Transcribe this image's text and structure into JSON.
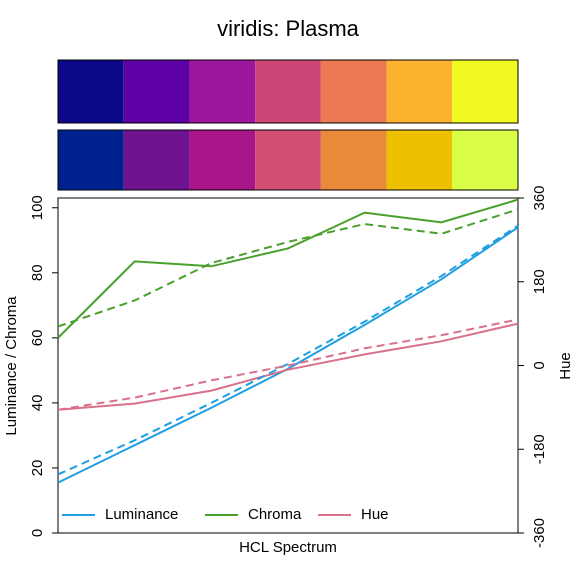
{
  "chart_data": {
    "type": "line",
    "title": "viridis: Plasma",
    "xlabel": "HCL Spectrum",
    "ylabel": "Luminance / Chroma",
    "y2label": "Hue",
    "swatches": [
      [
        "#0D0887",
        "#5D01A6",
        "#9C179E",
        "#CC4678",
        "#ED7953",
        "#FDB32F",
        "#F0F921"
      ],
      [
        "#00208F",
        "#6F1390",
        "#A8168A",
        "#D24F73",
        "#E88A3A",
        "#EEC100",
        "#D9FE45"
      ]
    ],
    "categories": [
      null,
      null,
      null,
      null,
      null,
      null,
      null
    ],
    "ylim": [
      0,
      103
    ],
    "yticks": [
      0,
      20,
      40,
      60,
      80,
      100
    ],
    "y2lim": [
      -360,
      360
    ],
    "y2ticks": [
      -360,
      -180,
      0,
      180,
      360
    ],
    "series": [
      {
        "name": "Luminance",
        "color": "#1F9EE0",
        "values": [
          15.5,
          27,
          38.5,
          50.5,
          64,
          78,
          94
        ]
      },
      {
        "name": "Chroma",
        "color": "#4AA02C",
        "values": [
          60,
          83.5,
          82,
          87.5,
          98.5,
          95.5,
          102.5
        ]
      },
      {
        "name": "Hue",
        "color": "#D9718A",
        "axis": "y2",
        "values": [
          -95,
          -82,
          -54,
          -9,
          24,
          52,
          90
        ]
      },
      {
        "color": "#1F9EE0",
        "dashed": true,
        "values": [
          18,
          28.5,
          40,
          52,
          65,
          79,
          94.5
        ]
      },
      {
        "color": "#4AA02C",
        "dashed": true,
        "values": [
          63.5,
          71.5,
          83,
          89.5,
          95,
          92,
          99.5
        ]
      },
      {
        "color": "#D9718A",
        "dashed": true,
        "axis": "y2",
        "values": [
          -95,
          -69,
          -32,
          0,
          37,
          65,
          99
        ]
      }
    ],
    "legend": "bottom-left"
  }
}
